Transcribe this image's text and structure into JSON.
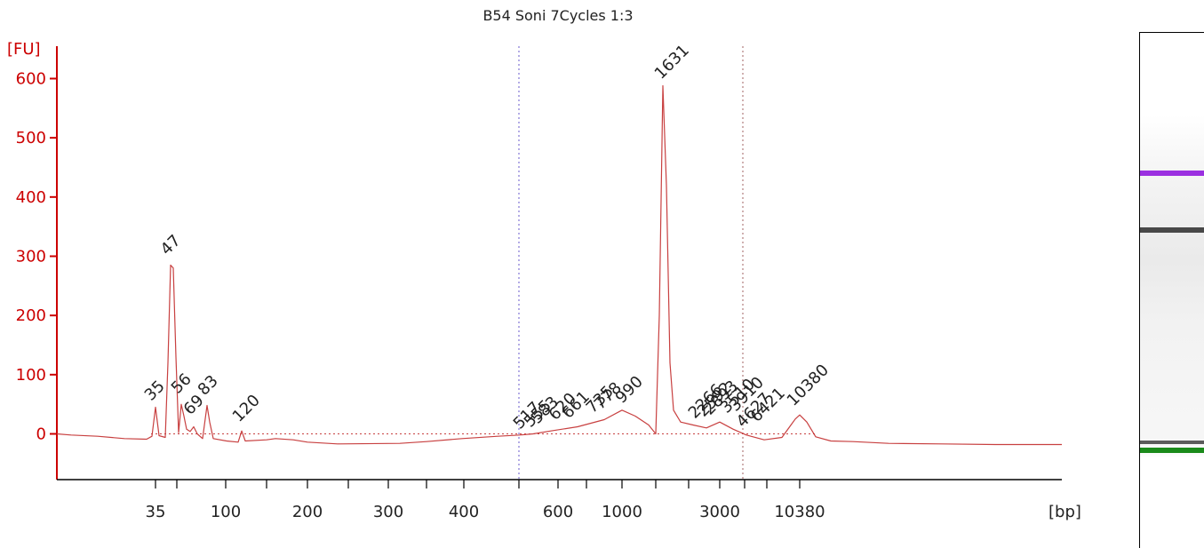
{
  "chart_data": {
    "type": "line",
    "title": "B54 Soni 7Cycles 1:3",
    "ylabel": "[FU]",
    "xlabel": "[bp]",
    "ylim": [
      -90,
      640
    ],
    "y_ticks": [
      0,
      100,
      200,
      300,
      400,
      500,
      600
    ],
    "x_ticks": [
      "35",
      "100",
      "200",
      "300",
      "400",
      "600",
      "1000",
      "3000",
      "10380"
    ],
    "series": [
      {
        "values": [
          {
            "bp": 35,
            "fu": 45
          },
          {
            "bp": 47,
            "fu": 285
          },
          {
            "bp": 56,
            "fu": 50
          },
          {
            "bp": 69,
            "fu": 12
          },
          {
            "bp": 83,
            "fu": 48
          },
          {
            "bp": 120,
            "fu": 5
          },
          {
            "bp": 517,
            "fu": -2
          },
          {
            "bp": 990,
            "fu": 42
          },
          {
            "bp": 1631,
            "fu": 588
          },
          {
            "bp": 3000,
            "fu": 20
          },
          {
            "bp": 6421,
            "fu": -5
          },
          {
            "bp": 10380,
            "fu": 32
          }
        ]
      }
    ],
    "peak_labels": [
      {
        "text": "35",
        "color": "#1a8a1a"
      },
      {
        "text": "47",
        "color": "#222222"
      },
      {
        "text": "56",
        "color": "#222222"
      },
      {
        "text": "69",
        "color": "#222222"
      },
      {
        "text": "83",
        "color": "#222222"
      },
      {
        "text": "120",
        "color": "#222222"
      },
      {
        "text": "517",
        "color": "#222222"
      },
      {
        "text": "555",
        "color": "#222222"
      },
      {
        "text": "583",
        "color": "#222222"
      },
      {
        "text": "620",
        "color": "#222222"
      },
      {
        "text": "661",
        "color": "#222222"
      },
      {
        "text": "735",
        "color": "#222222"
      },
      {
        "text": "778",
        "color": "#222222"
      },
      {
        "text": "990",
        "color": "#222222"
      },
      {
        "text": "1631",
        "color": "#222222"
      },
      {
        "text": "2266",
        "color": "#222222"
      },
      {
        "text": "2592",
        "color": "#222222"
      },
      {
        "text": "2893",
        "color": "#222222"
      },
      {
        "text": "3510",
        "color": "#222222"
      },
      {
        "text": "3910",
        "color": "#222222"
      },
      {
        "text": "4627",
        "color": "#222222"
      },
      {
        "text": "6421",
        "color": "#222222"
      },
      {
        "text": "10380",
        "color": "#9b30e0"
      }
    ],
    "grid": false,
    "colors": {
      "trace": "#c84040",
      "axis": "#cc0000",
      "lower_marker": "#1a8a1a",
      "upper_marker": "#9b30e0"
    }
  }
}
